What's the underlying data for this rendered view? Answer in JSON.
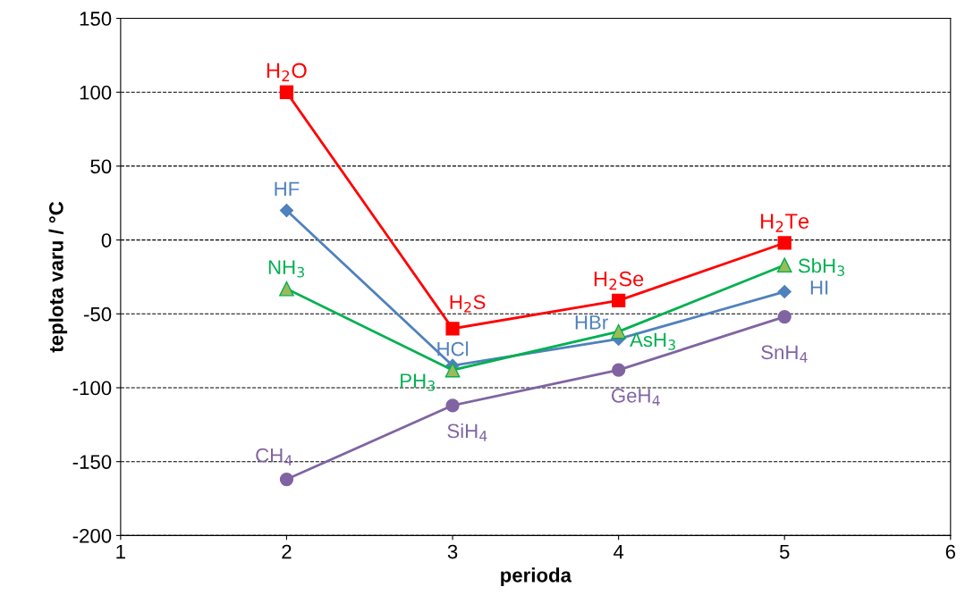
{
  "chart_data": {
    "type": "line",
    "xlabel": "perioda",
    "ylabel": "teplota varu / °C",
    "x": [
      2,
      3,
      4,
      5
    ],
    "series": [
      {
        "color": "#ff0000",
        "marker": "square",
        "values": [
          100,
          -60,
          -41,
          -2
        ]
      },
      {
        "color": "#4f81bd",
        "marker": "diamond",
        "values": [
          20,
          -85,
          -67,
          -35
        ]
      },
      {
        "color": "#00b050",
        "marker": "triangle",
        "values": [
          -33,
          -88,
          -62,
          -17
        ]
      },
      {
        "color": "#8064a2",
        "marker": "circle",
        "values": [
          -162,
          -112,
          -88,
          -52
        ]
      }
    ],
    "annotations": [
      {
        "text": "H$_{2}$O",
        "x": 2,
        "y": 100
      },
      {
        "text": "H$_{2}$S",
        "x": 3,
        "y": -60
      },
      {
        "text": "H$_{2}$Se",
        "x": 4,
        "y": -41
      },
      {
        "text": "H$_{2}$Te",
        "x": 5,
        "y": -2
      },
      {
        "text": "HF",
        "x": 2,
        "y": 20
      },
      {
        "text": "HCl",
        "x": 3,
        "y": -85
      },
      {
        "text": "HBr",
        "x": 4,
        "y": -67
      },
      {
        "text": "HI",
        "x": 5,
        "y": -35
      },
      {
        "text": "NH$_{3}$",
        "x": 2,
        "y": -33
      },
      {
        "text": "PH$_{3}$",
        "x": 3,
        "y": -88
      },
      {
        "text": "AsH$_{3}$",
        "x": 4,
        "y": -62
      },
      {
        "text": "SbH$_{3}$",
        "x": 5,
        "y": -17
      },
      {
        "text": "CH$_{4}$",
        "x": 2,
        "y": -162
      },
      {
        "text": "SiH$_{4}$",
        "x": 3,
        "y": -112
      },
      {
        "text": "GeH$_{4}$",
        "x": 4,
        "y": -88
      },
      {
        "text": "SnH$_{4}$",
        "x": 5,
        "y": -52
      }
    ],
    "xlim": [
      1,
      6
    ],
    "xticks": [
      1,
      2,
      3,
      4,
      5,
      6
    ],
    "ylim": [
      -200,
      150
    ],
    "yticks": [
      -200,
      -150,
      -100,
      -50,
      0,
      50,
      100,
      150
    ],
    "grid": "y",
    "legend": false
  }
}
